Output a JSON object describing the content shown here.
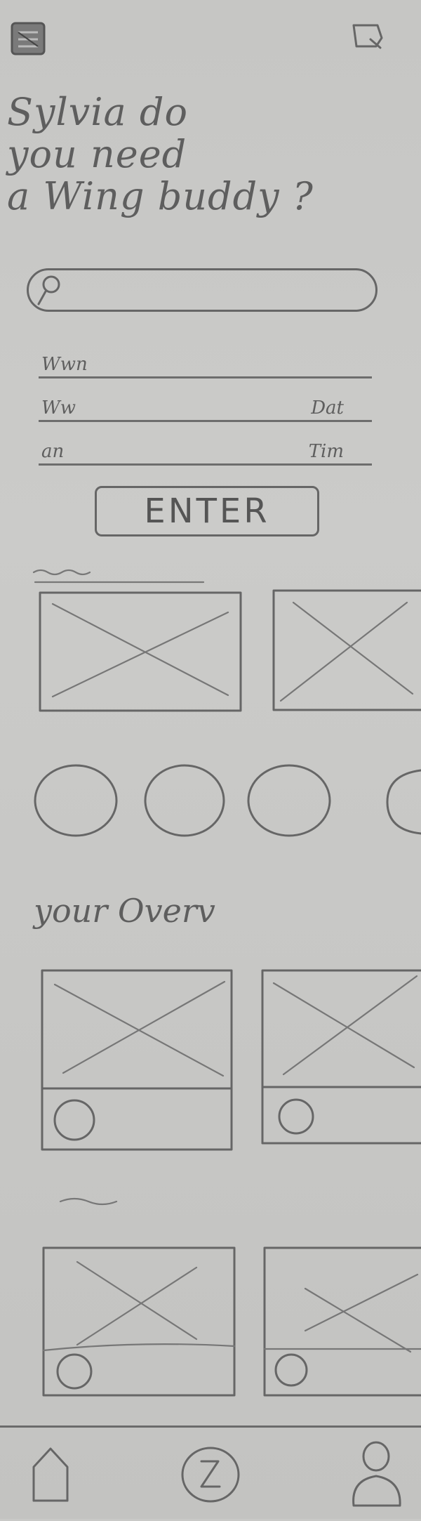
{
  "header": {
    "title_lines": [
      "Sylvia do",
      "you need",
      "a Wing buddy ?"
    ]
  },
  "form": {
    "rows": [
      {
        "label": "Wwn",
        "value": ""
      },
      {
        "label": "Ww",
        "value": "Dat"
      },
      {
        "label": "an",
        "value": "Tim"
      }
    ]
  },
  "enter_label": "ENTER",
  "sections": {
    "overview_title": "your Overv"
  }
}
